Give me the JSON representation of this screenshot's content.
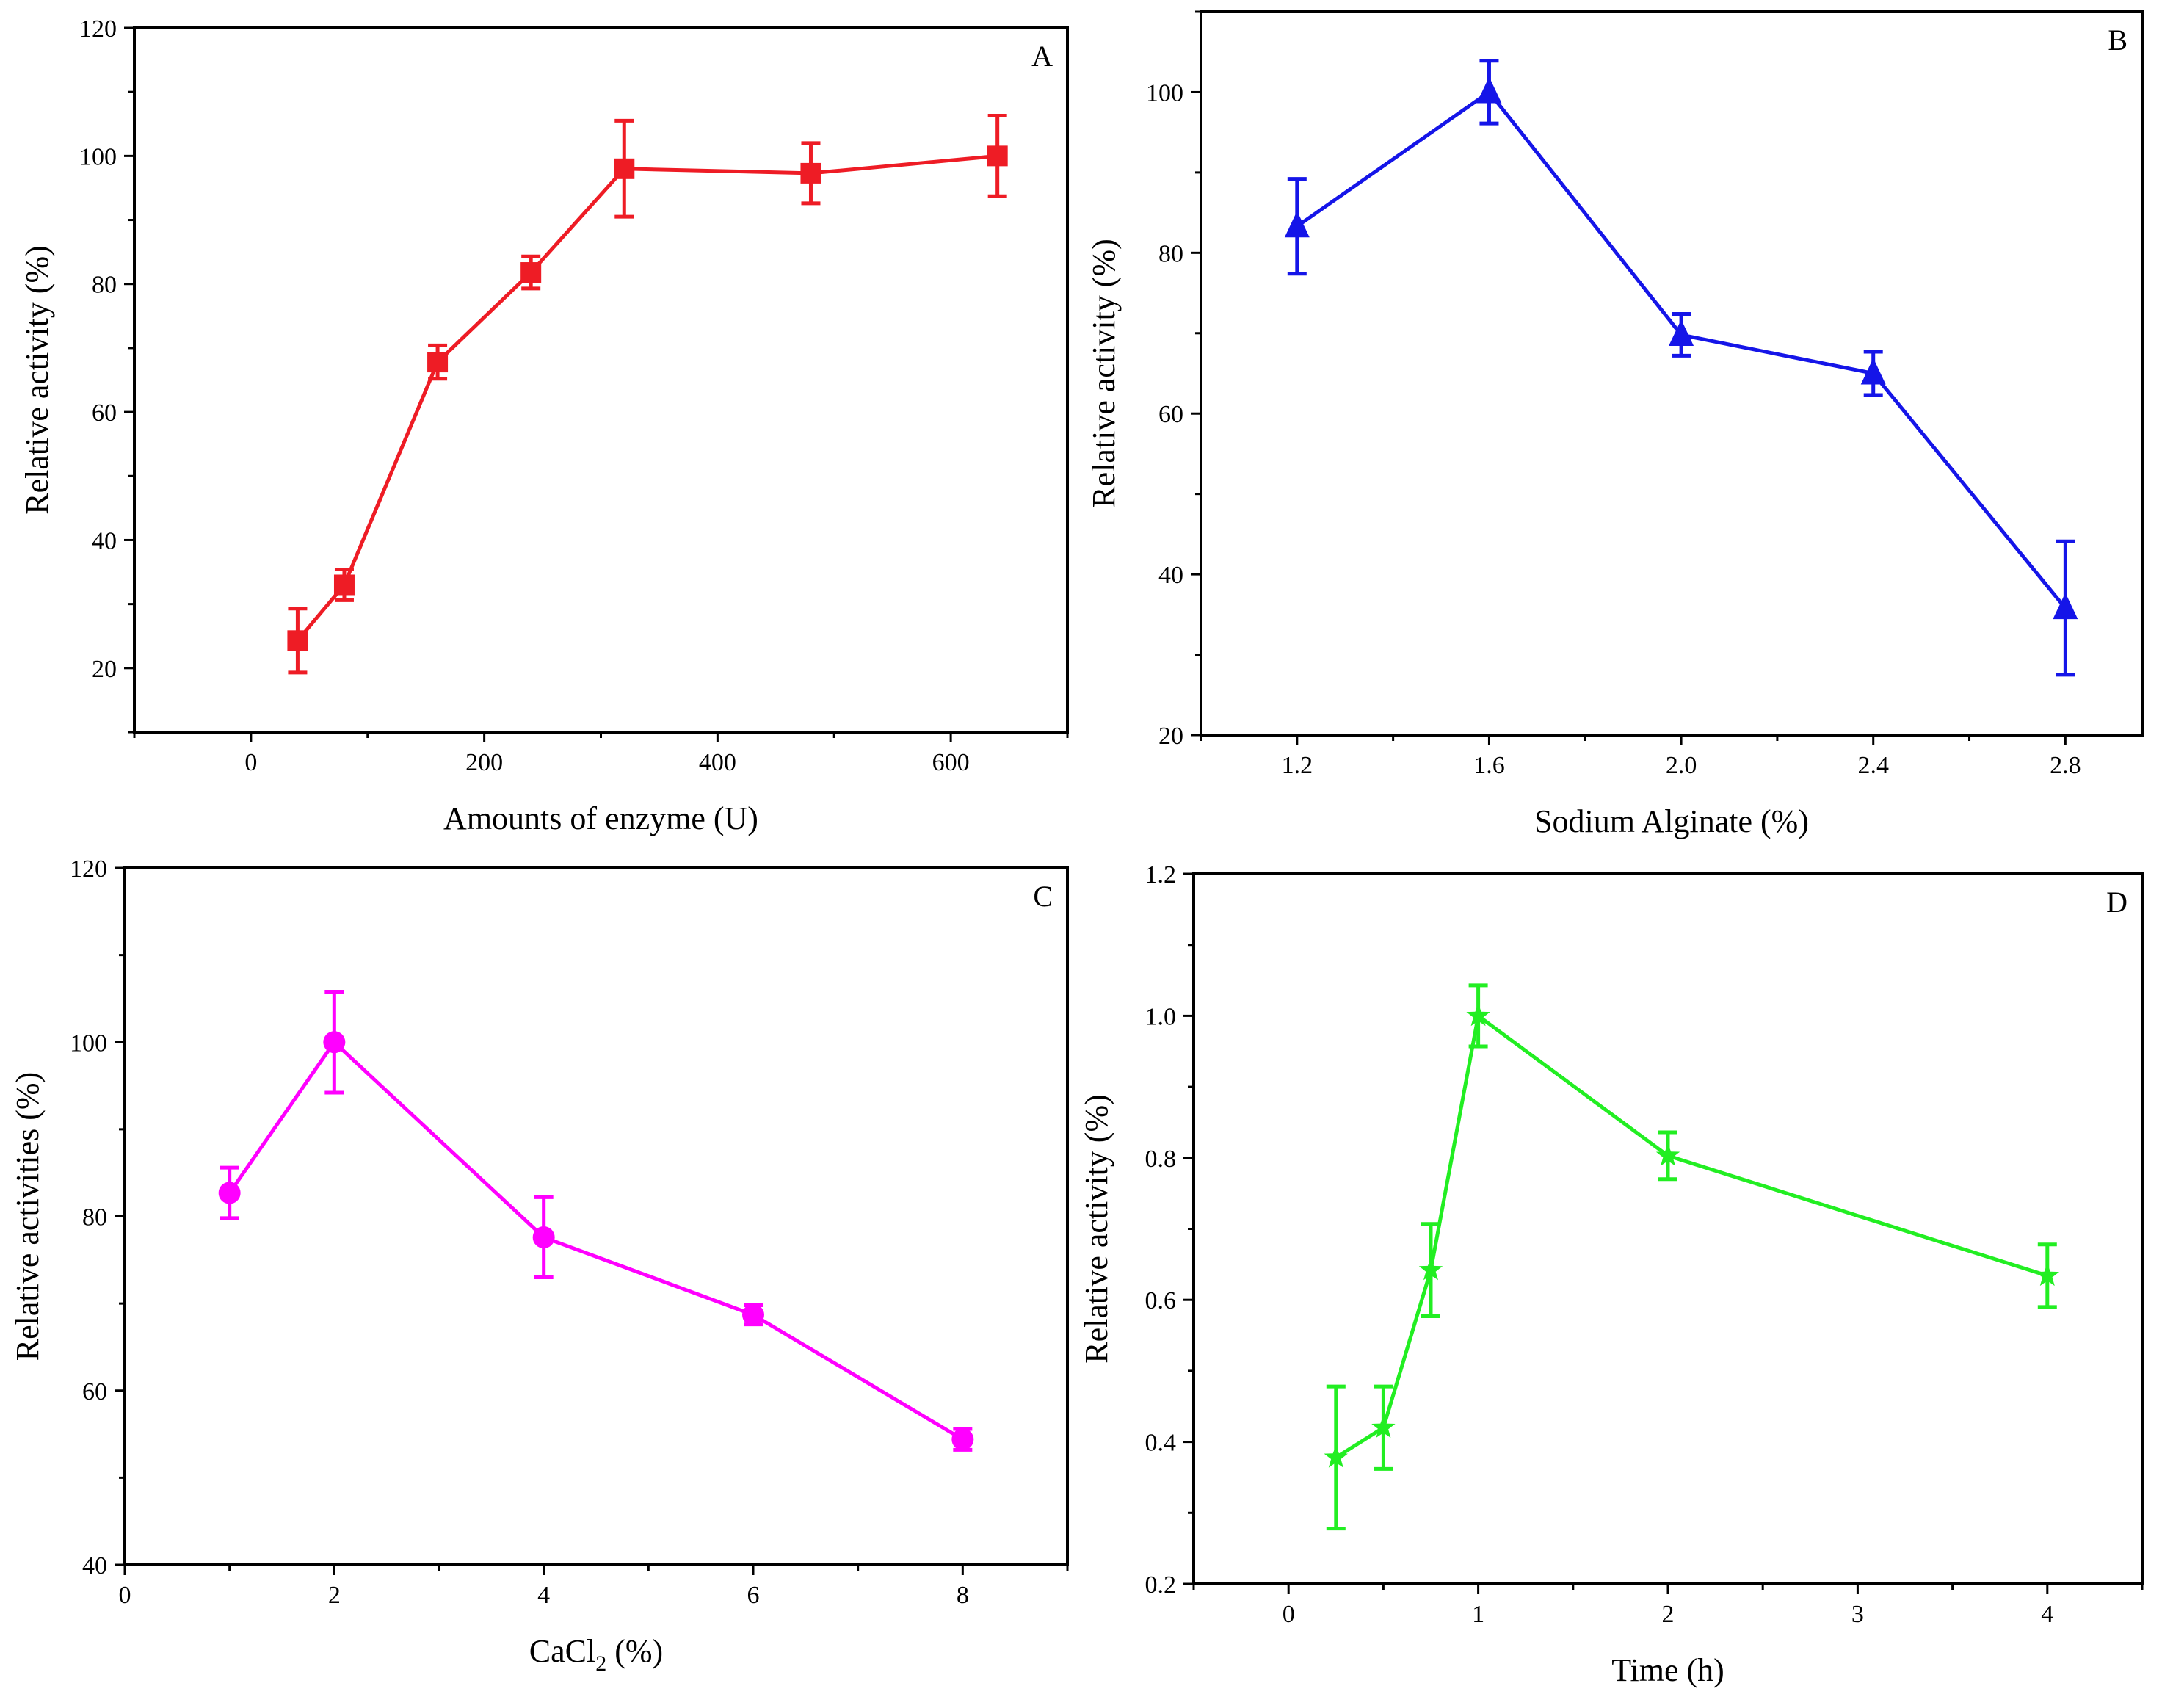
{
  "figure_title": "",
  "chart_data": [
    {
      "panel": "A",
      "type": "line",
      "xlabel": "Amounts of enzyme (U)",
      "ylabel": "Relative activity (%)",
      "xlim": [
        -100,
        700
      ],
      "ylim": [
        10,
        120
      ],
      "xticks": [
        0,
        200,
        400,
        600
      ],
      "xtick_labels": [
        "0",
        "200",
        "400",
        "600"
      ],
      "yticks": [
        20,
        40,
        60,
        80,
        100,
        120
      ],
      "ytick_labels": [
        "20",
        "40",
        "60",
        "80",
        "100",
        "120"
      ],
      "color": "#ee1c25",
      "marker": "square",
      "series": [
        {
          "name": "A",
          "x": [
            40,
            80,
            160,
            240,
            320,
            480,
            640
          ],
          "y": [
            24.3,
            33.0,
            67.8,
            81.8,
            98.0,
            97.3,
            100.0
          ],
          "err": [
            5.0,
            2.4,
            2.6,
            2.5,
            7.5,
            4.7,
            6.3
          ]
        }
      ]
    },
    {
      "panel": "B",
      "type": "line",
      "xlabel": "Sodium Alginate (%)",
      "ylabel": "Relative activity (%)",
      "xlim": [
        1.0,
        2.96
      ],
      "ylim": [
        20,
        110
      ],
      "xticks": [
        1.2,
        1.6,
        2.0,
        2.4,
        2.8
      ],
      "xtick_labels": [
        "1.2",
        "1.6",
        "2.0",
        "2.4",
        "2.8"
      ],
      "yticks": [
        20,
        40,
        60,
        80,
        100
      ],
      "ytick_labels": [
        "20",
        "40",
        "60",
        "80",
        "100"
      ],
      "color": "#1515e8",
      "marker": "triangle",
      "series": [
        {
          "name": "B",
          "x": [
            1.2,
            1.6,
            2.0,
            2.4,
            2.8
          ],
          "y": [
            83.3,
            100.0,
            69.8,
            65.0,
            35.8
          ],
          "err": [
            5.9,
            3.9,
            2.6,
            2.7,
            8.3
          ]
        }
      ]
    },
    {
      "panel": "C",
      "type": "line",
      "xlabel": "CaCl2 (%)",
      "xlabel_main": "CaCl",
      "xlabel_sub": "2",
      "xlabel_tail": " (%)",
      "ylabel": "Relative activities (%)",
      "xlim": [
        0,
        9
      ],
      "ylim": [
        40,
        120
      ],
      "xticks": [
        0,
        2,
        4,
        6,
        8
      ],
      "xtick_labels": [
        "0",
        "2",
        "4",
        "6",
        "8"
      ],
      "yticks": [
        40,
        60,
        80,
        100,
        120
      ],
      "ytick_labels": [
        "40",
        "60",
        "80",
        "100",
        "120"
      ],
      "color": "#ff00ff",
      "marker": "circle",
      "series": [
        {
          "name": "C",
          "x": [
            1,
            2,
            4,
            6,
            8
          ],
          "y": [
            82.7,
            100.0,
            77.6,
            68.7,
            54.4
          ],
          "err": [
            2.9,
            5.8,
            4.6,
            1.1,
            1.2
          ]
        }
      ]
    },
    {
      "panel": "D",
      "type": "line",
      "xlabel": "Time (h)",
      "ylabel": "Relative activity (%)",
      "xlim": [
        -0.5,
        4.5
      ],
      "ylim": [
        0.2,
        1.2
      ],
      "xticks": [
        0,
        1,
        2,
        3,
        4
      ],
      "xtick_labels": [
        "0",
        "1",
        "2",
        "3",
        "4"
      ],
      "yticks": [
        0.2,
        0.4,
        0.6,
        0.8,
        1.0,
        1.2
      ],
      "ytick_labels": [
        "0.2",
        "0.4",
        "0.6",
        "0.8",
        "1.0",
        "1.2"
      ],
      "color": "#22ee22",
      "marker": "star",
      "series": [
        {
          "name": "D",
          "x": [
            0.25,
            0.5,
            0.75,
            1,
            2,
            4
          ],
          "y": [
            0.378,
            0.42,
            0.642,
            1.0,
            0.803,
            0.634
          ],
          "err": [
            0.1,
            0.058,
            0.065,
            0.043,
            0.033,
            0.044
          ]
        }
      ]
    }
  ]
}
